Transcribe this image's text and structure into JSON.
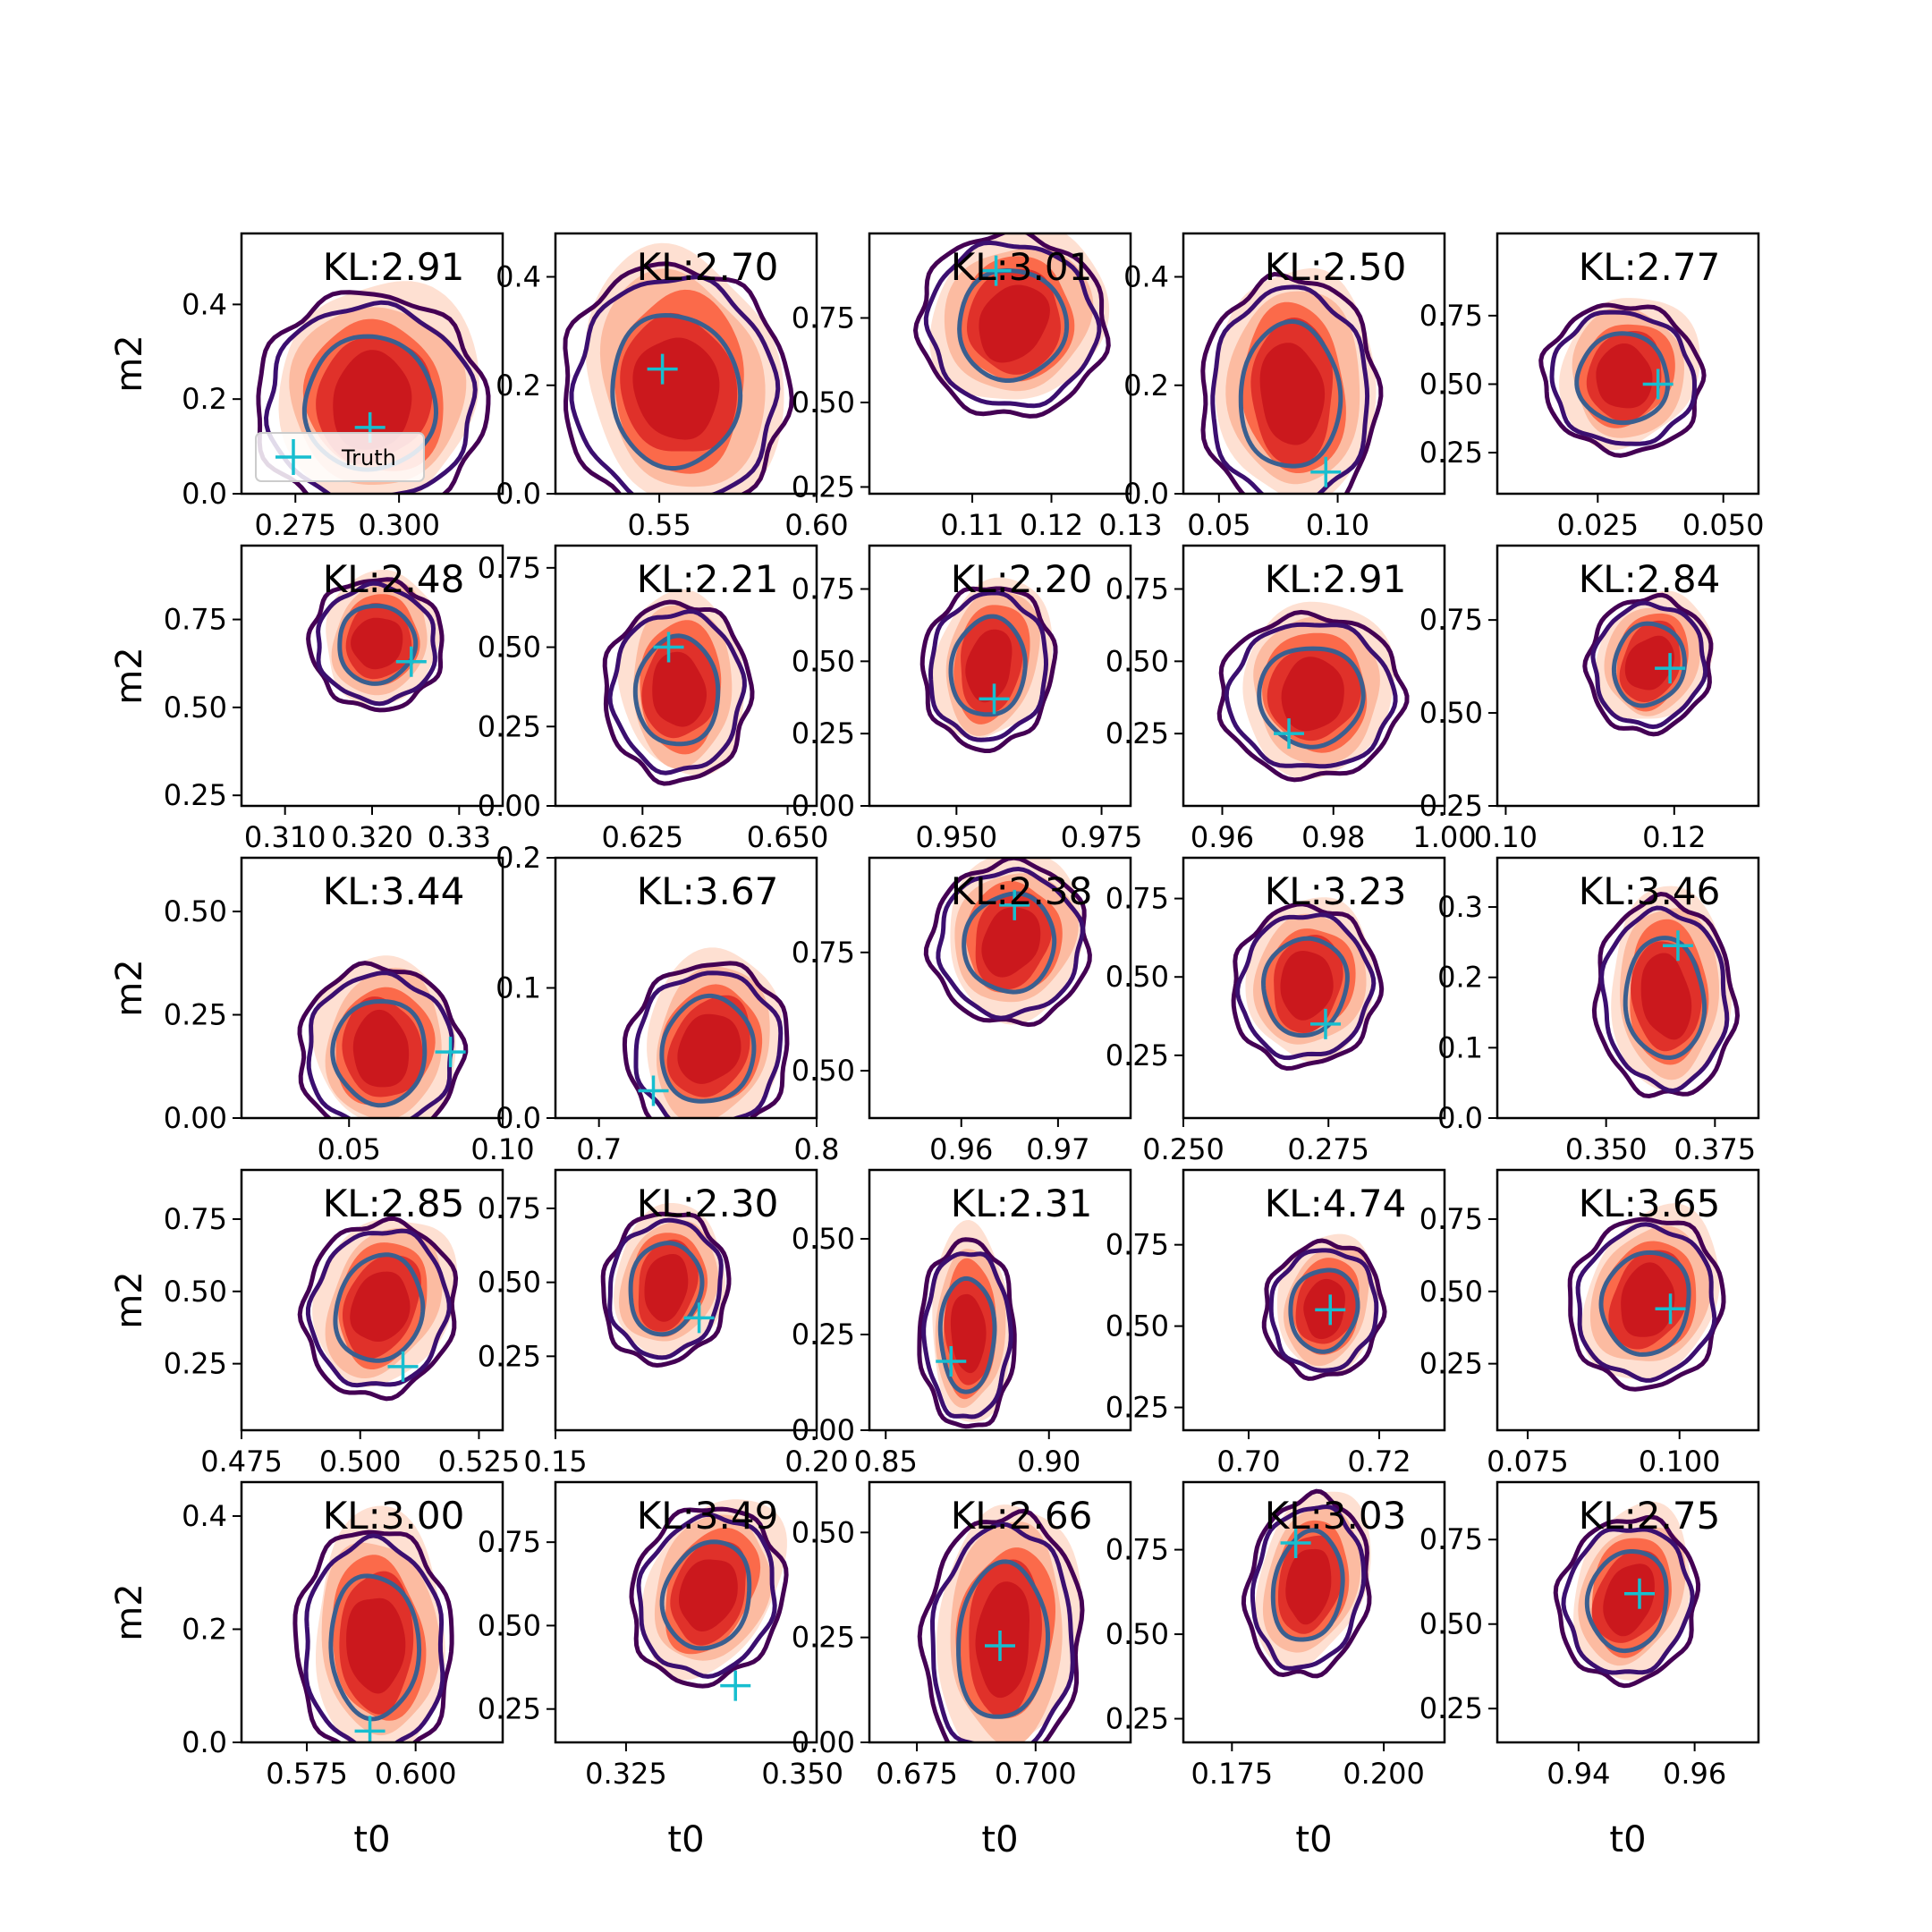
{
  "colors": {
    "fill_levels": [
      "#fee0d2",
      "#fcbba1",
      "#fb6a4a",
      "#e0312a",
      "#cb181d"
    ],
    "contour_outer": "#440154",
    "contour_mid": "#3b0f70",
    "contour_inner": "#3b5f8f",
    "truth_marker": "#17becf",
    "frame": "#000000"
  },
  "legend": {
    "label": "Truth",
    "marker": "plus-icon"
  },
  "chart_data": {
    "type": "contour-grid",
    "rows": 5,
    "cols": 5,
    "xlabel": "t0",
    "ylabel": "m2",
    "panels": [
      {
        "kl": "KL:2.91",
        "xticks": [
          "0.275",
          "0.300"
        ],
        "xlim": [
          0.262,
          0.325
        ],
        "xt": [
          0.275,
          0.3
        ],
        "yticks": [
          "0.0",
          "0.2",
          "0.4"
        ],
        "ylim": [
          0.0,
          0.55
        ],
        "yt": [
          0.0,
          0.2,
          0.4
        ],
        "truth": [
          0.293,
          0.14
        ],
        "center": [
          0.293,
          0.19
        ],
        "spread": [
          0.021,
          0.19
        ],
        "corr": 0.0,
        "legend": true
      },
      {
        "kl": "KL:2.70",
        "xticks": [
          "0.55",
          "0.60"
        ],
        "xlim": [
          0.517,
          0.6
        ],
        "xt": [
          0.55,
          0.6
        ],
        "yticks": [
          "0.0",
          "0.2",
          "0.4"
        ],
        "ylim": [
          0.0,
          0.48
        ],
        "yt": [
          0.0,
          0.2,
          0.4
        ],
        "truth": [
          0.551,
          0.23
        ],
        "center": [
          0.555,
          0.19
        ],
        "spread": [
          0.027,
          0.19
        ],
        "corr": 0.15
      },
      {
        "kl": "KL:3.01",
        "xticks": [
          "0.11",
          "0.12",
          "0.13"
        ],
        "xlim": [
          0.097,
          0.13
        ],
        "xt": [
          0.11,
          0.12,
          0.13
        ],
        "yticks": [
          "0.25",
          "0.50",
          "0.75"
        ],
        "ylim": [
          0.23,
          1.0
        ],
        "yt": [
          0.25,
          0.5,
          0.75
        ],
        "truth": [
          0.113,
          0.89
        ],
        "center": [
          0.115,
          0.73
        ],
        "spread": [
          0.009,
          0.22
        ],
        "corr": -0.55
      },
      {
        "kl": "KL:2.50",
        "xticks": [
          "0.05",
          "0.10"
        ],
        "xlim": [
          0.035,
          0.145
        ],
        "xt": [
          0.05,
          0.1
        ],
        "yticks": [
          "0.0",
          "0.2",
          "0.4"
        ],
        "ylim": [
          0.0,
          0.48
        ],
        "yt": [
          0.0,
          0.2,
          0.4
        ],
        "truth": [
          0.095,
          0.04
        ],
        "center": [
          0.08,
          0.18
        ],
        "spread": [
          0.028,
          0.18
        ],
        "corr": 0.0
      },
      {
        "kl": "KL:2.77",
        "xticks": [
          "0.025",
          "0.050"
        ],
        "xlim": [
          0.005,
          0.057
        ],
        "xt": [
          0.025,
          0.05
        ],
        "yticks": [
          "0.25",
          "0.50",
          "0.75"
        ],
        "ylim": [
          0.1,
          1.05
        ],
        "yt": [
          0.25,
          0.5,
          0.75
        ],
        "truth": [
          0.037,
          0.5
        ],
        "center": [
          0.03,
          0.52
        ],
        "spread": [
          0.012,
          0.22
        ],
        "corr": -0.35
      },
      {
        "kl": "KL:2.48",
        "xticks": [
          "0.310",
          "0.320",
          "0.33"
        ],
        "xlim": [
          0.305,
          0.335
        ],
        "xt": [
          0.31,
          0.32,
          0.33
        ],
        "yticks": [
          "0.25",
          "0.50",
          "0.75"
        ],
        "ylim": [
          0.22,
          0.96
        ],
        "yt": [
          0.25,
          0.5,
          0.75
        ],
        "truth": [
          0.3245,
          0.63
        ],
        "center": [
          0.3205,
          0.68
        ],
        "spread": [
          0.0058,
          0.15
        ],
        "corr": -0.55
      },
      {
        "kl": "KL:2.21",
        "xticks": [
          "0.625",
          "0.650"
        ],
        "xlim": [
          0.61,
          0.655
        ],
        "xt": [
          0.625,
          0.65
        ],
        "yticks": [
          "0.00",
          "0.25",
          "0.50",
          "0.75"
        ],
        "ylim": [
          0.0,
          0.82
        ],
        "yt": [
          0.0,
          0.25,
          0.5,
          0.75
        ],
        "truth": [
          0.6295,
          0.5
        ],
        "center": [
          0.631,
          0.36
        ],
        "spread": [
          0.0095,
          0.23
        ],
        "corr": 0.0
      },
      {
        "kl": "KL:2.20",
        "xticks": [
          "0.950",
          "0.975"
        ],
        "xlim": [
          0.935,
          0.98
        ],
        "xt": [
          0.95,
          0.975
        ],
        "yticks": [
          "0.00",
          "0.25",
          "0.50",
          "0.75"
        ],
        "ylim": [
          0.0,
          0.9
        ],
        "yt": [
          0.0,
          0.25,
          0.5,
          0.75
        ],
        "truth": [
          0.9565,
          0.37
        ],
        "center": [
          0.9555,
          0.48
        ],
        "spread": [
          0.0085,
          0.23
        ],
        "corr": -0.2
      },
      {
        "kl": "KL:2.91",
        "xticks": [
          "0.96",
          "0.98",
          "1.00"
        ],
        "xlim": [
          0.953,
          1.0
        ],
        "xt": [
          0.96,
          0.98,
          1.0
        ],
        "yticks": [
          "0.25",
          "0.50",
          "0.75"
        ],
        "ylim": [
          0.0,
          0.9
        ],
        "yt": [
          0.25,
          0.5,
          0.75
        ],
        "truth": [
          0.972,
          0.25
        ],
        "center": [
          0.976,
          0.38
        ],
        "spread": [
          0.0125,
          0.23
        ],
        "corr": 0.0
      },
      {
        "kl": "KL:2.84",
        "xticks": [
          "0.10",
          "0.12"
        ],
        "xlim": [
          0.099,
          0.13
        ],
        "xt": [
          0.1,
          0.12
        ],
        "yticks": [
          "0.25",
          "0.50",
          "0.75"
        ],
        "ylim": [
          0.25,
          0.95
        ],
        "yt": [
          0.25,
          0.5,
          0.75
        ],
        "truth": [
          0.1195,
          0.62
        ],
        "center": [
          0.117,
          0.63
        ],
        "spread": [
          0.0055,
          0.15
        ],
        "corr": -0.45
      },
      {
        "kl": "KL:3.44",
        "xticks": [
          "0.05",
          "0.10"
        ],
        "xlim": [
          0.015,
          0.1
        ],
        "xt": [
          0.05,
          0.1
        ],
        "yticks": [
          "0.00",
          "0.25",
          "0.50"
        ],
        "ylim": [
          0.0,
          0.63
        ],
        "yt": [
          0.0,
          0.25,
          0.5
        ],
        "truth": [
          0.083,
          0.16
        ],
        "center": [
          0.06,
          0.16
        ],
        "spread": [
          0.02,
          0.17
        ],
        "corr": 0.0
      },
      {
        "kl": "KL:3.67",
        "xticks": [
          "0.7",
          "0.8"
        ],
        "xlim": [
          0.68,
          0.8
        ],
        "xt": [
          0.7,
          0.8
        ],
        "yticks": [
          "0.0",
          "0.1",
          "0.2"
        ],
        "ylim": [
          0.0,
          0.2
        ],
        "yt": [
          0.0,
          0.1,
          0.2
        ],
        "truth": [
          0.725,
          0.021
        ],
        "center": [
          0.75,
          0.052
        ],
        "spread": [
          0.028,
          0.055
        ],
        "corr": -0.35
      },
      {
        "kl": "KL:2.38",
        "xticks": [
          "0.96",
          "0.97"
        ],
        "xlim": [
          0.9505,
          0.9775
        ],
        "xt": [
          0.96,
          0.97
        ],
        "yticks": [
          "0.50",
          "0.75"
        ],
        "ylim": [
          0.4,
          0.95
        ],
        "yt": [
          0.5,
          0.75
        ],
        "truth": [
          0.9655,
          0.85
        ],
        "center": [
          0.965,
          0.77
        ],
        "spread": [
          0.0062,
          0.14
        ],
        "corr": -0.35
      },
      {
        "kl": "KL:3.23",
        "xticks": [
          "0.250",
          "0.275"
        ],
        "xlim": [
          0.25,
          0.295
        ],
        "xt": [
          0.25,
          0.275
        ],
        "yticks": [
          "0.25",
          "0.50",
          "0.75"
        ],
        "ylim": [
          0.05,
          0.88
        ],
        "yt": [
          0.25,
          0.5,
          0.75
        ],
        "truth": [
          0.2745,
          0.35
        ],
        "center": [
          0.271,
          0.47
        ],
        "spread": [
          0.0095,
          0.21
        ],
        "corr": -0.3
      },
      {
        "kl": "KL:3.46",
        "xticks": [
          "0.350",
          "0.375"
        ],
        "xlim": [
          0.325,
          0.385
        ],
        "xt": [
          0.35,
          0.375
        ],
        "yticks": [
          "0.0",
          "0.1",
          "0.2",
          "0.3"
        ],
        "ylim": [
          0.0,
          0.37
        ],
        "yt": [
          0.0,
          0.1,
          0.2,
          0.3
        ],
        "truth": [
          0.3665,
          0.245
        ],
        "center": [
          0.3635,
          0.17
        ],
        "spread": [
          0.012,
          0.115
        ],
        "corr": 0.1
      },
      {
        "kl": "KL:2.85",
        "xticks": [
          "0.475",
          "0.500",
          "0.525"
        ],
        "xlim": [
          0.475,
          0.53
        ],
        "xt": [
          0.475,
          0.5,
          0.525
        ],
        "yticks": [
          "0.25",
          "0.50",
          "0.75"
        ],
        "ylim": [
          0.02,
          0.92
        ],
        "yt": [
          0.25,
          0.5,
          0.75
        ],
        "truth": [
          0.509,
          0.24
        ],
        "center": [
          0.504,
          0.44
        ],
        "spread": [
          0.012,
          0.25
        ],
        "corr": -0.4
      },
      {
        "kl": "KL:2.30",
        "xticks": [
          "0.15",
          "0.20"
        ],
        "xlim": [
          0.15,
          0.2
        ],
        "xt": [
          0.15,
          0.2
        ],
        "yticks": [
          "0.25",
          "0.50",
          "0.75"
        ],
        "ylim": [
          0.0,
          0.88
        ],
        "yt": [
          0.25,
          0.5,
          0.75
        ],
        "truth": [
          0.1775,
          0.38
        ],
        "center": [
          0.171,
          0.48
        ],
        "spread": [
          0.009,
          0.21
        ],
        "corr": -0.3
      },
      {
        "kl": "KL:2.31",
        "xticks": [
          "0.85",
          "0.90"
        ],
        "xlim": [
          0.845,
          0.925
        ],
        "xt": [
          0.85,
          0.9
        ],
        "yticks": [
          "0.00",
          "0.25",
          "0.50"
        ],
        "ylim": [
          0.0,
          0.68
        ],
        "yt": [
          0.0,
          0.25,
          0.5
        ],
        "truth": [
          0.87,
          0.18
        ],
        "center": [
          0.875,
          0.25
        ],
        "spread": [
          0.011,
          0.2
        ],
        "corr": 0.0
      },
      {
        "kl": "KL:4.74",
        "xticks": [
          "0.70",
          "0.72"
        ],
        "xlim": [
          0.69,
          0.73
        ],
        "xt": [
          0.7,
          0.72
        ],
        "yticks": [
          "0.25",
          "0.50",
          "0.75"
        ],
        "ylim": [
          0.18,
          0.98
        ],
        "yt": [
          0.25,
          0.5,
          0.75
        ],
        "truth": [
          0.7125,
          0.55
        ],
        "center": [
          0.7115,
          0.55
        ],
        "spread": [
          0.0068,
          0.17
        ],
        "corr": -0.3
      },
      {
        "kl": "KL:3.65",
        "xticks": [
          "0.075",
          "0.100"
        ],
        "xlim": [
          0.07,
          0.113
        ],
        "xt": [
          0.075,
          0.1
        ],
        "yticks": [
          "0.25",
          "0.50",
          "0.75"
        ],
        "ylim": [
          0.02,
          0.92
        ],
        "yt": [
          0.25,
          0.5,
          0.75
        ],
        "truth": [
          0.0985,
          0.44
        ],
        "center": [
          0.0945,
          0.46
        ],
        "spread": [
          0.0095,
          0.24
        ],
        "corr": -0.35
      },
      {
        "kl": "KL:3.00",
        "xticks": [
          "0.575",
          "0.600"
        ],
        "xlim": [
          0.56,
          0.62
        ],
        "xt": [
          0.575,
          0.6
        ],
        "yticks": [
          "0.0",
          "0.2",
          "0.4"
        ],
        "ylim": [
          0.0,
          0.46
        ],
        "yt": [
          0.0,
          0.2,
          0.4
        ],
        "truth": [
          0.5895,
          0.02
        ],
        "center": [
          0.5905,
          0.17
        ],
        "spread": [
          0.0135,
          0.17
        ],
        "corr": 0.05
      },
      {
        "kl": "KL:3.49",
        "xticks": [
          "0.325",
          "0.350"
        ],
        "xlim": [
          0.315,
          0.352
        ],
        "xt": [
          0.325,
          0.35
        ],
        "yticks": [
          "0.25",
          "0.50",
          "0.75"
        ],
        "ylim": [
          0.15,
          0.93
        ],
        "yt": [
          0.25,
          0.5,
          0.75
        ],
        "truth": [
          0.3405,
          0.32
        ],
        "center": [
          0.3365,
          0.59
        ],
        "spread": [
          0.008,
          0.22
        ],
        "corr": -0.5
      },
      {
        "kl": "KL:2.66",
        "xticks": [
          "0.675",
          "0.700"
        ],
        "xlim": [
          0.665,
          0.72
        ],
        "xt": [
          0.675,
          0.7
        ],
        "yticks": [
          "0.00",
          "0.25",
          "0.50"
        ],
        "ylim": [
          0.0,
          0.62
        ],
        "yt": [
          0.0,
          0.25,
          0.5
        ],
        "truth": [
          0.6925,
          0.23
        ],
        "center": [
          0.693,
          0.24
        ],
        "spread": [
          0.0125,
          0.25
        ],
        "corr": -0.1
      },
      {
        "kl": "KL:3.03",
        "xticks": [
          "0.175",
          "0.200"
        ],
        "xlim": [
          0.167,
          0.21
        ],
        "xt": [
          0.175,
          0.2
        ],
        "yticks": [
          "0.25",
          "0.50",
          "0.75"
        ],
        "ylim": [
          0.18,
          0.95
        ],
        "yt": [
          0.25,
          0.5,
          0.75
        ],
        "truth": [
          0.1855,
          0.77
        ],
        "center": [
          0.1875,
          0.64
        ],
        "spread": [
          0.0075,
          0.22
        ],
        "corr": -0.25
      },
      {
        "kl": "KL:2.75",
        "xticks": [
          "0.94",
          "0.96"
        ],
        "xlim": [
          0.926,
          0.971
        ],
        "xt": [
          0.94,
          0.96
        ],
        "yticks": [
          "0.25",
          "0.50",
          "0.75"
        ],
        "ylim": [
          0.15,
          0.92
        ],
        "yt": [
          0.25,
          0.5,
          0.75
        ],
        "truth": [
          0.9505,
          0.59
        ],
        "center": [
          0.9485,
          0.57
        ],
        "spread": [
          0.009,
          0.2
        ],
        "corr": -0.3
      }
    ]
  }
}
